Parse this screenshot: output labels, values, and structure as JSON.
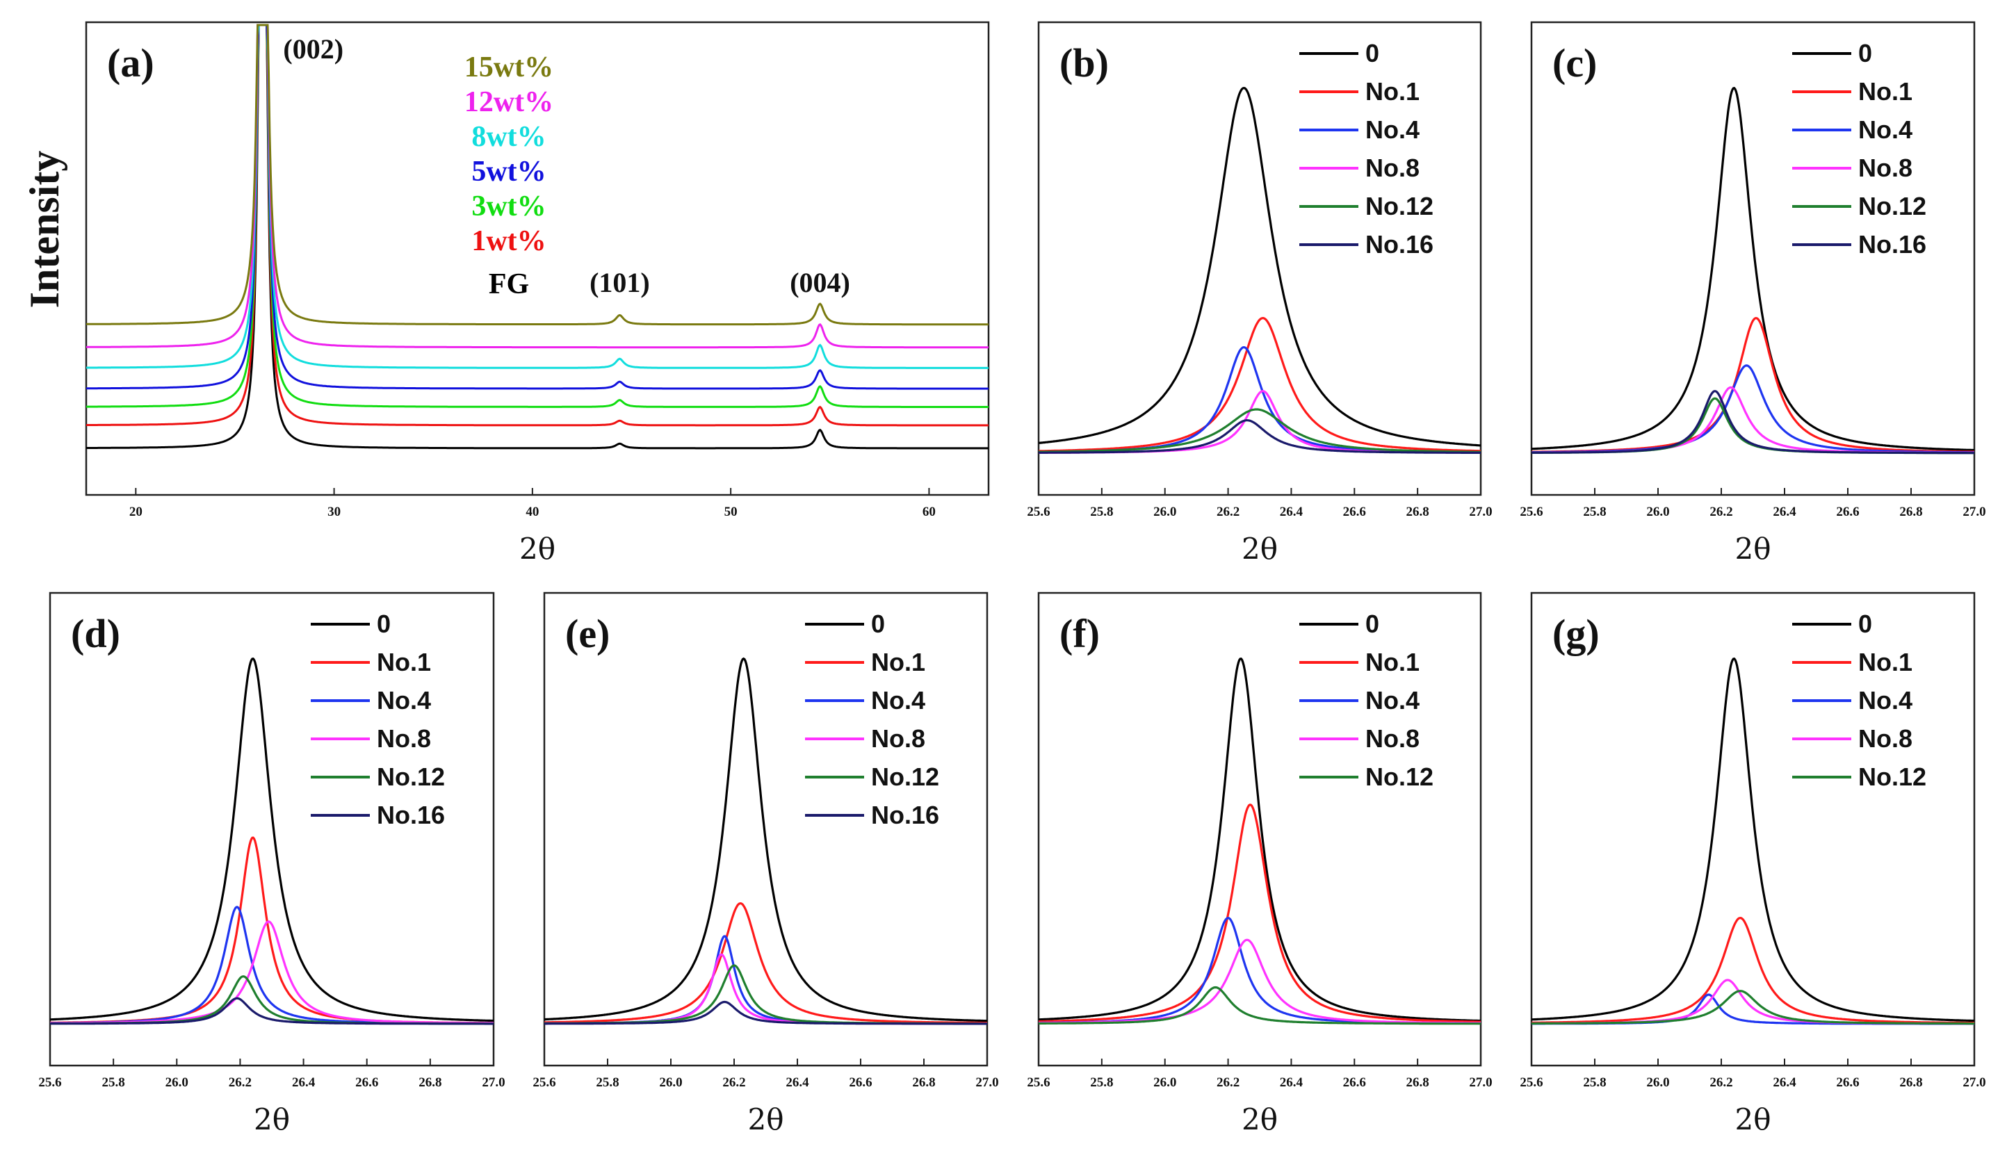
{
  "colors": {
    "c0": "#000000",
    "c1": "#ff1a1a",
    "c4": "#1e35f0",
    "c8": "#ff33ff",
    "c12": "#1f7f2e",
    "c16": "#1a1a6b",
    "FG": "#000000",
    "w1": "#ee1111",
    "w3": "#11dd11",
    "w5": "#1111dd",
    "w8": "#11dddd",
    "w12": "#ee22ee",
    "w15": "#7a7a10"
  },
  "chart_data": [
    {
      "id": "a",
      "type": "line",
      "panel_label": "(a)",
      "xlabel": "2θ",
      "ylabel": "Intensity",
      "xlim": [
        17.5,
        63
      ],
      "xticks": [
        20,
        30,
        40,
        50,
        60
      ],
      "tick_labels": [
        "20",
        "30",
        "40",
        "50",
        "60"
      ],
      "peak_labels": [
        {
          "text": "(002)",
          "x": 26.5
        },
        {
          "text": "(101)",
          "x": 44.4
        },
        {
          "text": "(004)",
          "x": 54.5
        }
      ],
      "series": [
        {
          "name": "FG",
          "color_key": "FG",
          "baseline": 0,
          "peaks": [
            [
              26.4,
              800
            ],
            [
              44.4,
              2
            ],
            [
              54.5,
              8
            ]
          ]
        },
        {
          "name": "1wt%",
          "color_key": "w1",
          "baseline": 10,
          "peaks": [
            [
              26.4,
              800
            ],
            [
              44.4,
              2
            ],
            [
              54.5,
              8
            ]
          ]
        },
        {
          "name": "3wt%",
          "color_key": "w3",
          "baseline": 18,
          "peaks": [
            [
              26.4,
              800
            ],
            [
              44.4,
              3
            ],
            [
              54.5,
              9
            ]
          ]
        },
        {
          "name": "5wt%",
          "color_key": "w5",
          "baseline": 26,
          "peaks": [
            [
              26.4,
              800
            ],
            [
              44.4,
              3
            ],
            [
              54.5,
              8
            ]
          ]
        },
        {
          "name": "8wt%",
          "color_key": "w8",
          "baseline": 35,
          "peaks": [
            [
              26.4,
              800
            ],
            [
              44.4,
              4
            ],
            [
              54.5,
              10
            ]
          ]
        },
        {
          "name": "12wt%",
          "color_key": "w12",
          "baseline": 44,
          "peaks": [
            [
              26.4,
              800
            ],
            [
              54.5,
              10
            ]
          ]
        },
        {
          "name": "15wt%",
          "color_key": "w15",
          "baseline": 54,
          "peaks": [
            [
              26.4,
              800
            ],
            [
              44.4,
              4
            ],
            [
              54.5,
              9
            ]
          ]
        }
      ],
      "legend_labels": [
        "15wt%",
        "12wt%",
        "8wt%",
        "5wt%",
        "3wt%",
        "1wt%",
        "FG"
      ]
    },
    {
      "id": "b",
      "type": "line",
      "panel_label": "(b)",
      "xlabel": "2θ",
      "xlim": [
        25.6,
        27.0
      ],
      "ylim": [
        0,
        1.18
      ],
      "xticks": [
        25.6,
        25.8,
        26.0,
        26.2,
        26.4,
        26.6,
        26.8,
        27.0
      ],
      "tick_labels": [
        "25.6",
        "25.8",
        "26.0",
        "26.2",
        "26.4",
        "26.6",
        "26.8",
        "27.0"
      ],
      "series": [
        {
          "name": "0",
          "color_key": "c0",
          "center": 26.25,
          "height": 1.0,
          "width": 0.11
        },
        {
          "name": "No.1",
          "color_key": "c1",
          "center": 26.31,
          "height": 0.37,
          "width": 0.09
        },
        {
          "name": "No.4",
          "color_key": "c4",
          "center": 26.25,
          "height": 0.29,
          "width": 0.07
        },
        {
          "name": "No.8",
          "color_key": "c8",
          "center": 26.31,
          "height": 0.17,
          "width": 0.06
        },
        {
          "name": "No.12",
          "color_key": "c12",
          "center": 26.29,
          "height": 0.12,
          "width": 0.12
        },
        {
          "name": "No.16",
          "color_key": "c16",
          "center": 26.26,
          "height": 0.09,
          "width": 0.08
        }
      ]
    },
    {
      "id": "c",
      "type": "line",
      "panel_label": "(c)",
      "xlabel": "2θ",
      "xlim": [
        25.6,
        27.0
      ],
      "ylim": [
        0,
        1.18
      ],
      "xticks": [
        25.6,
        25.8,
        26.0,
        26.2,
        26.4,
        26.6,
        26.8,
        27.0
      ],
      "tick_labels": [
        "25.6",
        "25.8",
        "26.0",
        "26.2",
        "26.4",
        "26.6",
        "26.8",
        "27.0"
      ],
      "series": [
        {
          "name": "0",
          "color_key": "c0",
          "center": 26.24,
          "height": 1.0,
          "width": 0.07
        },
        {
          "name": "No.1",
          "color_key": "c1",
          "center": 26.31,
          "height": 0.37,
          "width": 0.07
        },
        {
          "name": "No.4",
          "color_key": "c4",
          "center": 26.28,
          "height": 0.24,
          "width": 0.07
        },
        {
          "name": "No.8",
          "color_key": "c8",
          "center": 26.23,
          "height": 0.18,
          "width": 0.06
        },
        {
          "name": "No.12",
          "color_key": "c12",
          "center": 26.18,
          "height": 0.15,
          "width": 0.05
        },
        {
          "name": "No.16",
          "color_key": "c16",
          "center": 26.18,
          "height": 0.17,
          "width": 0.05
        }
      ]
    },
    {
      "id": "d",
      "type": "line",
      "panel_label": "(d)",
      "xlabel": "2θ",
      "xlim": [
        25.6,
        27.0
      ],
      "ylim": [
        0,
        1.18
      ],
      "xticks": [
        25.6,
        25.8,
        26.0,
        26.2,
        26.4,
        26.6,
        26.8,
        27.0
      ],
      "tick_labels": [
        "25.6",
        "25.8",
        "26.0",
        "26.2",
        "26.4",
        "26.6",
        "26.8",
        "27.0"
      ],
      "series": [
        {
          "name": "0",
          "color_key": "c0",
          "center": 26.24,
          "height": 1.0,
          "width": 0.07
        },
        {
          "name": "No.1",
          "color_key": "c1",
          "center": 26.24,
          "height": 0.51,
          "width": 0.05
        },
        {
          "name": "No.4",
          "color_key": "c4",
          "center": 26.19,
          "height": 0.32,
          "width": 0.05
        },
        {
          "name": "No.8",
          "color_key": "c8",
          "center": 26.29,
          "height": 0.28,
          "width": 0.06
        },
        {
          "name": "No.12",
          "color_key": "c12",
          "center": 26.21,
          "height": 0.13,
          "width": 0.05
        },
        {
          "name": "No.16",
          "color_key": "c16",
          "center": 26.19,
          "height": 0.07,
          "width": 0.05
        }
      ]
    },
    {
      "id": "e",
      "type": "line",
      "panel_label": "(e)",
      "xlabel": "2θ",
      "xlim": [
        25.6,
        27.0
      ],
      "ylim": [
        0,
        1.18
      ],
      "xticks": [
        25.6,
        25.8,
        26.0,
        26.2,
        26.4,
        26.6,
        26.8,
        27.0
      ],
      "tick_labels": [
        "25.6",
        "25.8",
        "26.0",
        "26.2",
        "26.4",
        "26.6",
        "26.8",
        "27.0"
      ],
      "series": [
        {
          "name": "0",
          "color_key": "c0",
          "center": 26.23,
          "height": 1.0,
          "width": 0.07
        },
        {
          "name": "No.1",
          "color_key": "c1",
          "center": 26.22,
          "height": 0.33,
          "width": 0.07
        },
        {
          "name": "No.4",
          "color_key": "c4",
          "center": 26.17,
          "height": 0.24,
          "width": 0.04
        },
        {
          "name": "No.8",
          "color_key": "c8",
          "center": 26.16,
          "height": 0.19,
          "width": 0.04
        },
        {
          "name": "No.12",
          "color_key": "c12",
          "center": 26.2,
          "height": 0.16,
          "width": 0.05
        },
        {
          "name": "No.16",
          "color_key": "c16",
          "center": 26.17,
          "height": 0.06,
          "width": 0.05
        }
      ]
    },
    {
      "id": "f",
      "type": "line",
      "panel_label": "(f)",
      "xlabel": "2θ",
      "xlim": [
        25.6,
        27.0
      ],
      "ylim": [
        0,
        1.18
      ],
      "xticks": [
        25.6,
        25.8,
        26.0,
        26.2,
        26.4,
        26.6,
        26.8,
        27.0
      ],
      "tick_labels": [
        "25.6",
        "25.8",
        "26.0",
        "26.2",
        "26.4",
        "26.6",
        "26.8",
        "27.0"
      ],
      "series": [
        {
          "name": "0",
          "color_key": "c0",
          "center": 26.24,
          "height": 1.0,
          "width": 0.07
        },
        {
          "name": "No.1",
          "color_key": "c1",
          "center": 26.27,
          "height": 0.6,
          "width": 0.07
        },
        {
          "name": "No.4",
          "color_key": "c4",
          "center": 26.2,
          "height": 0.29,
          "width": 0.06
        },
        {
          "name": "No.8",
          "color_key": "c8",
          "center": 26.26,
          "height": 0.23,
          "width": 0.07
        },
        {
          "name": "No.12",
          "color_key": "c12",
          "center": 26.16,
          "height": 0.1,
          "width": 0.06
        }
      ]
    },
    {
      "id": "g",
      "type": "line",
      "panel_label": "(g)",
      "xlabel": "2θ",
      "xlim": [
        25.6,
        27.0
      ],
      "ylim": [
        0,
        1.18
      ],
      "xticks": [
        25.6,
        25.8,
        26.0,
        26.2,
        26.4,
        26.6,
        26.8,
        27.0
      ],
      "tick_labels": [
        "25.6",
        "25.8",
        "26.0",
        "26.2",
        "26.4",
        "26.6",
        "26.8",
        "27.0"
      ],
      "series": [
        {
          "name": "0",
          "color_key": "c0",
          "center": 26.24,
          "height": 1.0,
          "width": 0.07
        },
        {
          "name": "No.1",
          "color_key": "c1",
          "center": 26.26,
          "height": 0.29,
          "width": 0.07
        },
        {
          "name": "No.4",
          "color_key": "c4",
          "center": 26.16,
          "height": 0.08,
          "width": 0.04
        },
        {
          "name": "No.8",
          "color_key": "c8",
          "center": 26.22,
          "height": 0.12,
          "width": 0.06
        },
        {
          "name": "No.12",
          "color_key": "c12",
          "center": 26.26,
          "height": 0.09,
          "width": 0.07
        }
      ]
    }
  ]
}
